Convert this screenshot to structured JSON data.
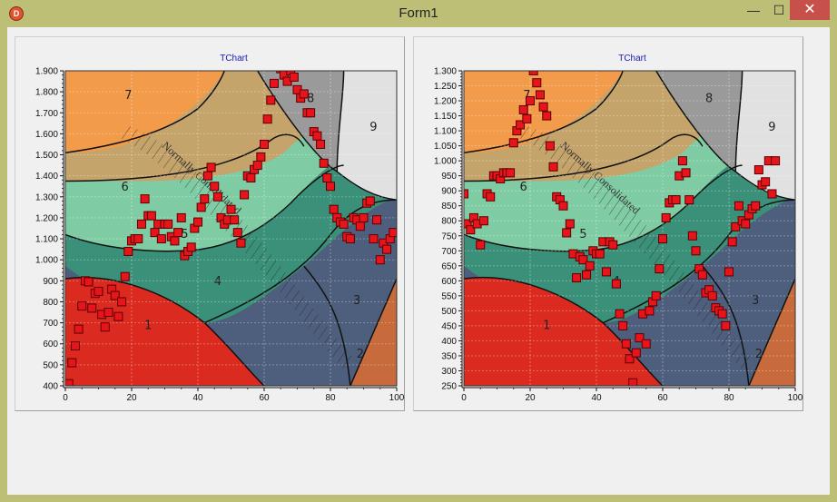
{
  "window": {
    "title": "Form1",
    "icon": "app-icon",
    "controls": {
      "minimize": "minimize-icon",
      "maximize": "maximize-icon",
      "close": "close-icon"
    },
    "accent": "#c7504a"
  },
  "zones_colors": {
    "z1": "#db2a1f",
    "z2": "#c76a3c",
    "z3": "#4e5e7d",
    "z4": "#3a9078",
    "z5": "#7fcca4",
    "z6": "#c4a46b",
    "z7": "#f29b4b",
    "z8": "#9a9a9a",
    "z9": "#e1e1e1"
  },
  "chart_data": [
    {
      "type": "scatter",
      "title": "TChart",
      "xlim": [
        0,
        100
      ],
      "ylim": [
        400,
        1900
      ],
      "xticks": [
        "0",
        "20",
        "40",
        "60",
        "80",
        "100"
      ],
      "yticks": [
        "400",
        "500",
        "600",
        "700",
        "800",
        "900",
        "1.000",
        "1.100",
        "1.200",
        "1.300",
        "1.400",
        "1.500",
        "1.600",
        "1.700",
        "1.800",
        "1.900"
      ],
      "zone_labels": [
        "1",
        "2",
        "3",
        "4",
        "5",
        "6",
        "7",
        "8",
        "9"
      ],
      "annotation": "Normally Consolidated",
      "marker_color": "#e8141c",
      "points": [
        [
          0,
          405
        ],
        [
          1,
          410
        ],
        [
          2,
          510
        ],
        [
          3,
          590
        ],
        [
          4,
          670
        ],
        [
          5,
          780
        ],
        [
          6,
          900
        ],
        [
          7,
          895
        ],
        [
          8,
          770
        ],
        [
          9,
          840
        ],
        [
          10,
          850
        ],
        [
          11,
          740
        ],
        [
          12,
          680
        ],
        [
          13,
          750
        ],
        [
          14,
          860
        ],
        [
          15,
          830
        ],
        [
          16,
          730
        ],
        [
          17,
          800
        ],
        [
          18,
          920
        ],
        [
          19,
          1040
        ],
        [
          20,
          1090
        ],
        [
          21,
          1100
        ],
        [
          22,
          1100
        ],
        [
          23,
          1170
        ],
        [
          24,
          1290
        ],
        [
          25,
          1210
        ],
        [
          26,
          1210
        ],
        [
          27,
          1130
        ],
        [
          28,
          1170
        ],
        [
          29,
          1100
        ],
        [
          30,
          1170
        ],
        [
          31,
          1170
        ],
        [
          32,
          1110
        ],
        [
          33,
          1090
        ],
        [
          34,
          1130
        ],
        [
          35,
          1200
        ],
        [
          36,
          1020
        ],
        [
          37,
          1040
        ],
        [
          38,
          1060
        ],
        [
          39,
          1150
        ],
        [
          40,
          1180
        ],
        [
          41,
          1250
        ],
        [
          42,
          1290
        ],
        [
          43,
          1400
        ],
        [
          44,
          1440
        ],
        [
          45,
          1350
        ],
        [
          46,
          1300
        ],
        [
          47,
          1200
        ],
        [
          48,
          1170
        ],
        [
          49,
          1190
        ],
        [
          50,
          1240
        ],
        [
          51,
          1190
        ],
        [
          52,
          1130
        ],
        [
          53,
          1080
        ],
        [
          54,
          1310
        ],
        [
          55,
          1400
        ],
        [
          56,
          1390
        ],
        [
          57,
          1430
        ],
        [
          58,
          1450
        ],
        [
          59,
          1490
        ],
        [
          60,
          1550
        ],
        [
          61,
          1670
        ],
        [
          62,
          1760
        ],
        [
          63,
          1840
        ],
        [
          64,
          1950
        ],
        [
          65,
          1910
        ],
        [
          66,
          1880
        ],
        [
          67,
          1850
        ],
        [
          68,
          1900
        ],
        [
          69,
          1870
        ],
        [
          70,
          1810
        ],
        [
          71,
          1770
        ],
        [
          72,
          1790
        ],
        [
          73,
          1700
        ],
        [
          74,
          1700
        ],
        [
          75,
          1610
        ],
        [
          76,
          1590
        ],
        [
          77,
          1550
        ],
        [
          78,
          1460
        ],
        [
          79,
          1390
        ],
        [
          80,
          1350
        ],
        [
          81,
          1240
        ],
        [
          82,
          1200
        ],
        [
          83,
          1180
        ],
        [
          84,
          1170
        ],
        [
          85,
          1110
        ],
        [
          86,
          1100
        ],
        [
          87,
          1200
        ],
        [
          88,
          1190
        ],
        [
          89,
          1160
        ],
        [
          90,
          1200
        ],
        [
          91,
          1270
        ],
        [
          92,
          1280
        ],
        [
          93,
          1100
        ],
        [
          94,
          1190
        ],
        [
          95,
          1000
        ],
        [
          96,
          1080
        ],
        [
          97,
          1050
        ],
        [
          98,
          1100
        ],
        [
          99,
          1130
        ]
      ]
    },
    {
      "type": "scatter",
      "title": "TChart",
      "xlim": [
        0,
        100
      ],
      "ylim": [
        250,
        1300
      ],
      "xticks": [
        "0",
        "20",
        "40",
        "60",
        "80",
        "100"
      ],
      "yticks": [
        "250",
        "300",
        "350",
        "400",
        "450",
        "500",
        "550",
        "600",
        "650",
        "700",
        "750",
        "800",
        "850",
        "900",
        "950",
        "1.000",
        "1.050",
        "1.100",
        "1.150",
        "1.200",
        "1.250",
        "1.300"
      ],
      "zone_labels": [
        "1",
        "2",
        "3",
        "4",
        "5",
        "6",
        "7",
        "8",
        "9"
      ],
      "annotation": "Normally Consolidated",
      "marker_color": "#e8141c",
      "points": [
        [
          0,
          890
        ],
        [
          1,
          790
        ],
        [
          2,
          770
        ],
        [
          3,
          810
        ],
        [
          4,
          790
        ],
        [
          5,
          720
        ],
        [
          6,
          800
        ],
        [
          7,
          890
        ],
        [
          8,
          880
        ],
        [
          9,
          950
        ],
        [
          10,
          950
        ],
        [
          11,
          940
        ],
        [
          12,
          960
        ],
        [
          13,
          960
        ],
        [
          14,
          960
        ],
        [
          15,
          1060
        ],
        [
          16,
          1100
        ],
        [
          17,
          1120
        ],
        [
          18,
          1170
        ],
        [
          19,
          1140
        ],
        [
          20,
          1200
        ],
        [
          21,
          1300
        ],
        [
          22,
          1260
        ],
        [
          23,
          1220
        ],
        [
          24,
          1180
        ],
        [
          25,
          1150
        ],
        [
          26,
          1050
        ],
        [
          27,
          980
        ],
        [
          28,
          880
        ],
        [
          29,
          870
        ],
        [
          30,
          850
        ],
        [
          31,
          760
        ],
        [
          32,
          790
        ],
        [
          33,
          690
        ],
        [
          34,
          610
        ],
        [
          35,
          680
        ],
        [
          36,
          670
        ],
        [
          37,
          620
        ],
        [
          38,
          650
        ],
        [
          39,
          700
        ],
        [
          40,
          690
        ],
        [
          41,
          690
        ],
        [
          42,
          730
        ],
        [
          43,
          630
        ],
        [
          44,
          730
        ],
        [
          45,
          720
        ],
        [
          46,
          590
        ],
        [
          47,
          490
        ],
        [
          48,
          450
        ],
        [
          49,
          390
        ],
        [
          50,
          340
        ],
        [
          51,
          260
        ],
        [
          52,
          360
        ],
        [
          53,
          410
        ],
        [
          54,
          490
        ],
        [
          55,
          390
        ],
        [
          56,
          500
        ],
        [
          57,
          530
        ],
        [
          58,
          550
        ],
        [
          59,
          640
        ],
        [
          60,
          740
        ],
        [
          61,
          810
        ],
        [
          62,
          860
        ],
        [
          63,
          870
        ],
        [
          64,
          870
        ],
        [
          65,
          950
        ],
        [
          66,
          1000
        ],
        [
          67,
          960
        ],
        [
          68,
          870
        ],
        [
          69,
          750
        ],
        [
          70,
          700
        ],
        [
          71,
          640
        ],
        [
          72,
          620
        ],
        [
          73,
          560
        ],
        [
          74,
          570
        ],
        [
          75,
          550
        ],
        [
          76,
          510
        ],
        [
          77,
          500
        ],
        [
          78,
          490
        ],
        [
          79,
          450
        ],
        [
          80,
          630
        ],
        [
          81,
          730
        ],
        [
          82,
          780
        ],
        [
          83,
          850
        ],
        [
          84,
          800
        ],
        [
          85,
          790
        ],
        [
          86,
          820
        ],
        [
          87,
          840
        ],
        [
          88,
          850
        ],
        [
          89,
          970
        ],
        [
          90,
          920
        ],
        [
          91,
          930
        ],
        [
          92,
          1000
        ],
        [
          93,
          890
        ],
        [
          94,
          1000
        ]
      ]
    }
  ]
}
